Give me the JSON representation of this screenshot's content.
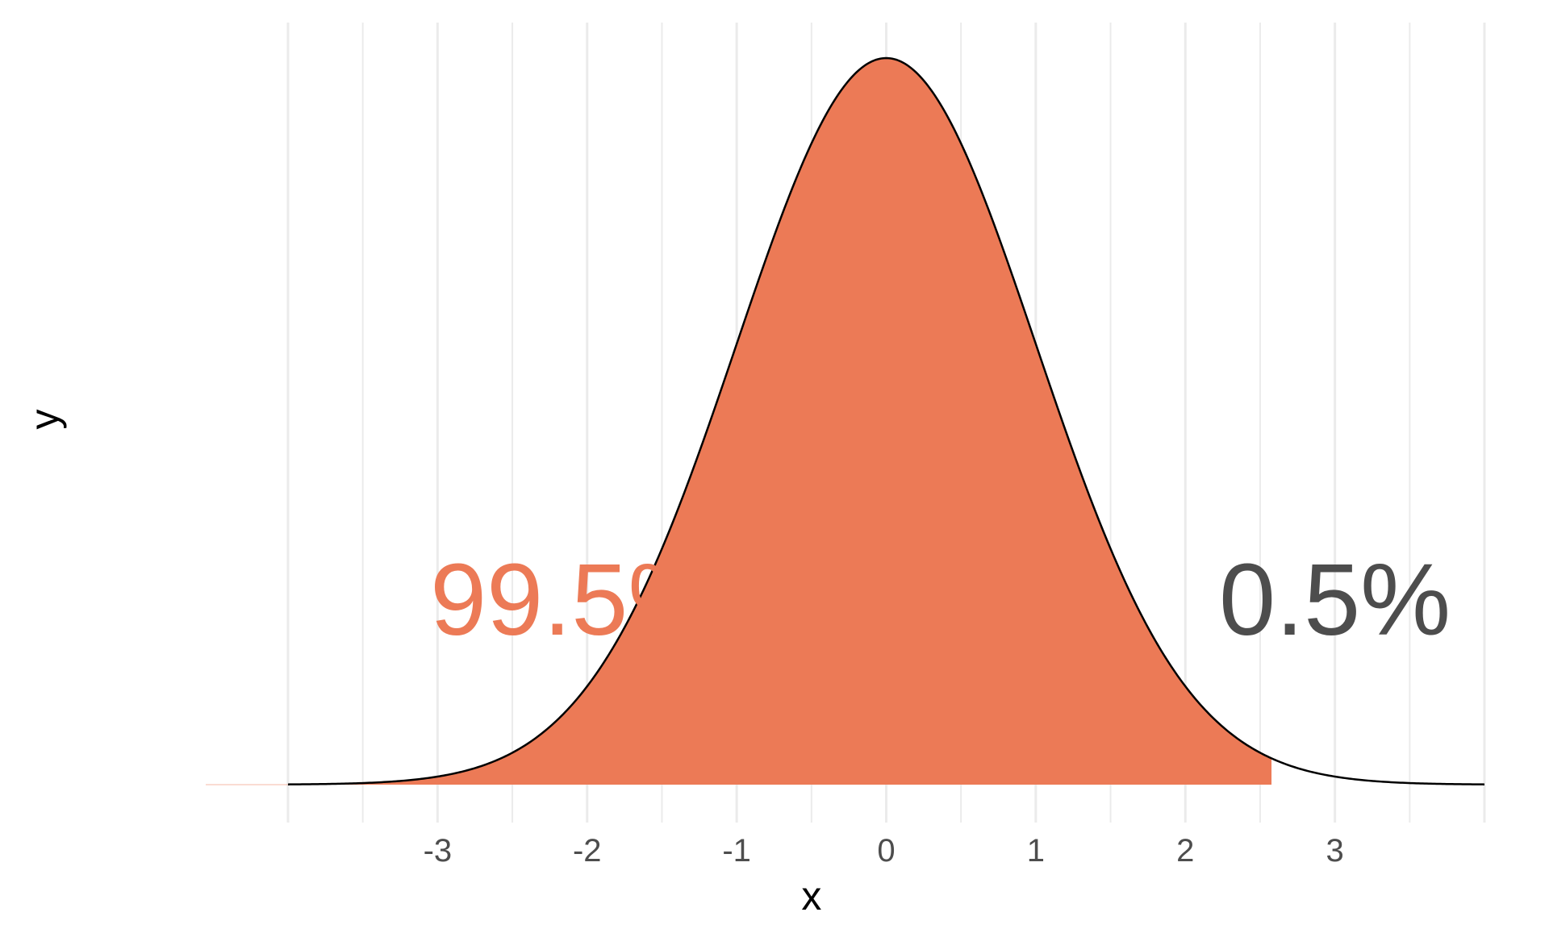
{
  "chart_data": {
    "type": "area",
    "distribution": "standard normal density",
    "curve": {
      "mean": 0,
      "sd": 1,
      "x_range": [
        -4,
        4
      ]
    },
    "shaded_region": {
      "from": -4,
      "to": 2.576,
      "area_percent": 99.5
    },
    "unshaded_region": {
      "from": 2.576,
      "to": 4,
      "area_percent": 0.5
    },
    "xlim": [
      -4,
      4
    ],
    "ylim": [
      0,
      0.4
    ],
    "x_ticks": [
      -3,
      -2,
      -1,
      0,
      1,
      2,
      3
    ],
    "x_tick_labels": [
      "-3",
      "-2",
      "-1",
      "0",
      "1",
      "2",
      "3"
    ],
    "x_minor_gridlines": [
      -4,
      -3.5,
      -3,
      -2.5,
      -2,
      -1.5,
      -1,
      -0.5,
      0,
      0.5,
      1,
      1.5,
      2,
      2.5,
      3,
      3.5,
      4
    ],
    "grid": "vertical only",
    "y_ticks": [],
    "xlabel": "x",
    "ylabel": "y",
    "annotations": [
      {
        "text": "99.5%",
        "x": -3.05,
        "color": "#EC7A56"
      },
      {
        "text": "0.5%",
        "x": 3.0,
        "color": "#4D4D4D"
      }
    ],
    "colors": {
      "fill": "#EC7A56",
      "curve": "#000000",
      "grid": "#EBEBEB",
      "tick_text": "#4D4D4D"
    }
  }
}
